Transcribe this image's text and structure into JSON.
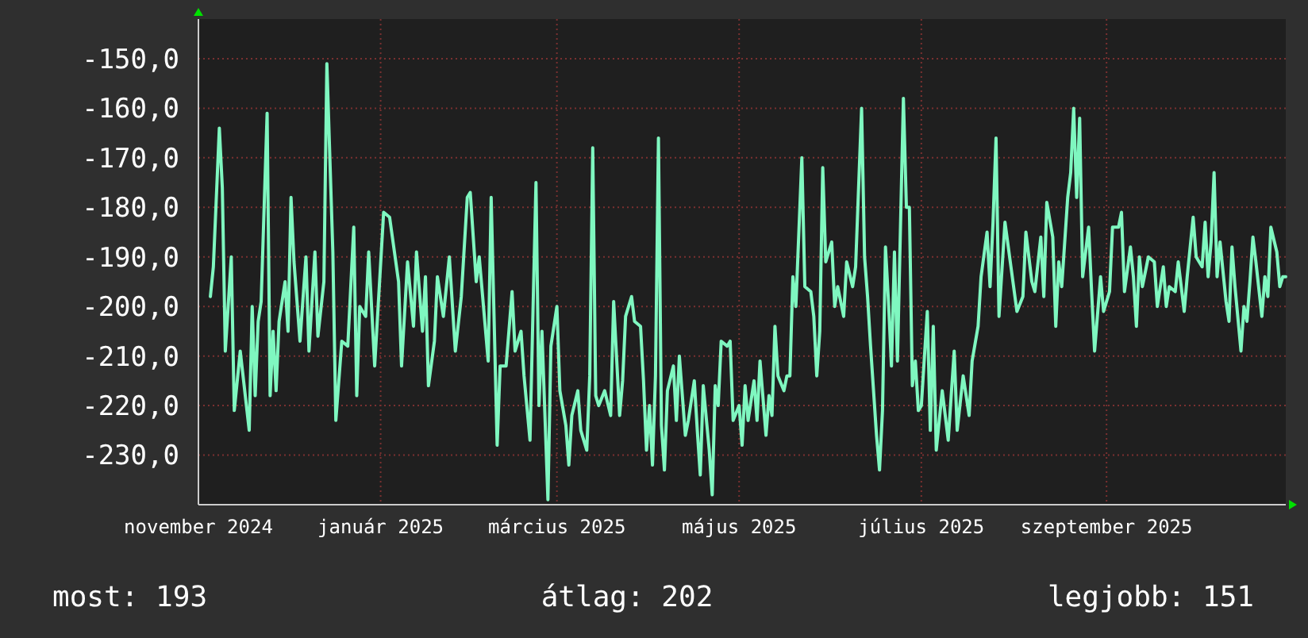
{
  "chart_data": {
    "type": "line",
    "color": "#7ff7c0",
    "grid": true,
    "xlim": [
      "2024-11-01",
      "2025-10-31"
    ],
    "xticks": [
      {
        "value": "2024-11-01",
        "label": "november 2024"
      },
      {
        "value": "2025-01-01",
        "label": "január 2025"
      },
      {
        "value": "2025-03-01",
        "label": "március 2025"
      },
      {
        "value": "2025-05-01",
        "label": "május 2025"
      },
      {
        "value": "2025-07-01",
        "label": "július 2025"
      },
      {
        "value": "2025-09-01",
        "label": "szeptember 2025"
      }
    ],
    "ylim": [
      -240,
      -142
    ],
    "yticks": [
      {
        "value": -150,
        "label": "-150,0"
      },
      {
        "value": -160,
        "label": "-160,0"
      },
      {
        "value": -170,
        "label": "-170,0"
      },
      {
        "value": -180,
        "label": "-180,0"
      },
      {
        "value": -190,
        "label": "-190,0"
      },
      {
        "value": -200,
        "label": "-200,0"
      },
      {
        "value": -210,
        "label": "-210,0"
      },
      {
        "value": -220,
        "label": "-220,0"
      },
      {
        "value": -230,
        "label": "-230,0"
      }
    ],
    "annotations": [
      "most: 193",
      "átlag: 202",
      "legjobb: 151"
    ],
    "x": [
      "2024-11-05",
      "2024-11-06",
      "2024-11-08",
      "2024-11-09",
      "2024-11-10",
      "2024-11-12",
      "2024-11-13",
      "2024-11-15",
      "2024-11-18",
      "2024-11-19",
      "2024-11-20",
      "2024-11-21",
      "2024-11-22",
      "2024-11-24",
      "2024-11-25",
      "2024-11-26",
      "2024-11-27",
      "2024-11-28",
      "2024-11-30",
      "2024-12-01",
      "2024-12-02",
      "2024-12-03",
      "2024-12-05",
      "2024-12-07",
      "2024-12-08",
      "2024-12-10",
      "2024-12-11",
      "2024-12-13",
      "2024-12-14",
      "2024-12-16",
      "2024-12-17",
      "2024-12-19",
      "2024-12-21",
      "2024-12-23",
      "2024-12-24",
      "2024-12-25",
      "2024-12-27",
      "2024-12-28",
      "2024-12-30",
      "2025-01-02",
      "2025-01-04",
      "2025-01-07",
      "2025-01-08",
      "2025-01-10",
      "2025-01-12",
      "2025-01-13",
      "2025-01-15",
      "2025-01-16",
      "2025-01-17",
      "2025-01-19",
      "2025-01-20",
      "2025-01-22",
      "2025-01-24",
      "2025-01-26",
      "2025-01-28",
      "2025-01-30",
      "2025-01-31",
      "2025-02-02",
      "2025-02-03",
      "2025-02-06",
      "2025-02-07",
      "2025-02-09",
      "2025-02-10",
      "2025-02-12",
      "2025-02-14",
      "2025-02-15",
      "2025-02-17",
      "2025-02-18",
      "2025-02-20",
      "2025-02-21",
      "2025-02-22",
      "2025-02-23",
      "2025-02-24",
      "2025-02-26",
      "2025-02-27",
      "2025-03-01",
      "2025-03-02",
      "2025-03-04",
      "2025-03-05",
      "2025-03-06",
      "2025-03-08",
      "2025-03-09",
      "2025-03-11",
      "2025-03-12",
      "2025-03-13",
      "2025-03-14",
      "2025-03-15",
      "2025-03-17",
      "2025-03-19",
      "2025-03-20",
      "2025-03-22",
      "2025-03-23",
      "2025-03-24",
      "2025-03-26",
      "2025-03-27",
      "2025-03-29",
      "2025-03-30",
      "2025-03-31",
      "2025-04-01",
      "2025-04-02",
      "2025-04-03",
      "2025-04-04",
      "2025-04-05",
      "2025-04-06",
      "2025-04-07",
      "2025-04-09",
      "2025-04-10",
      "2025-04-11",
      "2025-04-13",
      "2025-04-14",
      "2025-04-16",
      "2025-04-17",
      "2025-04-18",
      "2025-04-19",
      "2025-04-21",
      "2025-04-22",
      "2025-04-23",
      "2025-04-24",
      "2025-04-25",
      "2025-04-27",
      "2025-04-28",
      "2025-04-29",
      "2025-05-01",
      "2025-05-02",
      "2025-05-03",
      "2025-05-04",
      "2025-05-06",
      "2025-05-07",
      "2025-05-08",
      "2025-05-10",
      "2025-05-11",
      "2025-05-12",
      "2025-05-13",
      "2025-05-14",
      "2025-05-16",
      "2025-05-17",
      "2025-05-18",
      "2025-05-19",
      "2025-05-20",
      "2025-05-22",
      "2025-05-23",
      "2025-05-25",
      "2025-05-26",
      "2025-05-27",
      "2025-05-28",
      "2025-05-29",
      "2025-05-30",
      "2025-06-01",
      "2025-06-02",
      "2025-06-03",
      "2025-06-05",
      "2025-06-06",
      "2025-06-08",
      "2025-06-09",
      "2025-06-11",
      "2025-06-12",
      "2025-06-13",
      "2025-06-14",
      "2025-06-16",
      "2025-06-17",
      "2025-06-18",
      "2025-06-19",
      "2025-06-20",
      "2025-06-21",
      "2025-06-22",
      "2025-06-23",
      "2025-06-25",
      "2025-06-26",
      "2025-06-27",
      "2025-06-28",
      "2025-06-29",
      "2025-06-30",
      "2025-07-01",
      "2025-07-03",
      "2025-07-04",
      "2025-07-05",
      "2025-07-06",
      "2025-07-08",
      "2025-07-10",
      "2025-07-12",
      "2025-07-13",
      "2025-07-15",
      "2025-07-17",
      "2025-07-18",
      "2025-07-20",
      "2025-07-21",
      "2025-07-23",
      "2025-07-24",
      "2025-07-25",
      "2025-07-26",
      "2025-07-27",
      "2025-07-29",
      "2025-07-31",
      "2025-08-02",
      "2025-08-04",
      "2025-08-05",
      "2025-08-07",
      "2025-08-08",
      "2025-08-10",
      "2025-08-11",
      "2025-08-12",
      "2025-08-14",
      "2025-08-15",
      "2025-08-16",
      "2025-08-17",
      "2025-08-19",
      "2025-08-20",
      "2025-08-21",
      "2025-08-22",
      "2025-08-23",
      "2025-08-24",
      "2025-08-26",
      "2025-08-27",
      "2025-08-28",
      "2025-08-30",
      "2025-08-31",
      "2025-09-02",
      "2025-09-03",
      "2025-09-05",
      "2025-09-06",
      "2025-09-07",
      "2025-09-09",
      "2025-09-10",
      "2025-09-11",
      "2025-09-12",
      "2025-09-13",
      "2025-09-15",
      "2025-09-17",
      "2025-09-18",
      "2025-09-20",
      "2025-09-21",
      "2025-09-22",
      "2025-09-24",
      "2025-09-25",
      "2025-09-27",
      "2025-09-28",
      "2025-09-30",
      "2025-10-01",
      "2025-10-03",
      "2025-10-04",
      "2025-10-05",
      "2025-10-06",
      "2025-10-07",
      "2025-10-08",
      "2025-10-09",
      "2025-10-11",
      "2025-10-12",
      "2025-10-13",
      "2025-10-14",
      "2025-10-16",
      "2025-10-17",
      "2025-10-18",
      "2025-10-19",
      "2025-10-20",
      "2025-10-21",
      "2025-10-23",
      "2025-10-24",
      "2025-10-25",
      "2025-10-26",
      "2025-10-28",
      "2025-10-29",
      "2025-10-30",
      "2025-10-31"
    ],
    "values": [
      -198,
      -192,
      -164,
      -176,
      -209,
      -190,
      -221,
      -209,
      -225,
      -200,
      -218,
      -203,
      -199,
      -161,
      -218,
      -205,
      -217,
      -203,
      -195,
      -205,
      -178,
      -191,
      -207,
      -190,
      -209,
      -189,
      -206,
      -195,
      -151,
      -189,
      -223,
      -207,
      -208,
      -184,
      -218,
      -200,
      -202,
      -189,
      -212,
      -181,
      -182,
      -195,
      -212,
      -191,
      -204,
      -189,
      -205,
      -194,
      -216,
      -207,
      -194,
      -202,
      -190,
      -209,
      -198,
      -178,
      -177,
      -195,
      -190,
      -211,
      -178,
      -228,
      -212,
      -212,
      -197,
      -209,
      -205,
      -214,
      -227,
      -201,
      -175,
      -220,
      -205,
      -239,
      -208,
      -200,
      -217,
      -224,
      -232,
      -222,
      -217,
      -225,
      -229,
      -214,
      -168,
      -218,
      -220,
      -217,
      -222,
      -199,
      -222,
      -215,
      -202,
      -198,
      -203,
      -204,
      -215,
      -229,
      -220,
      -232,
      -214,
      -166,
      -224,
      -233,
      -217,
      -212,
      -223,
      -210,
      -226,
      -223,
      -215,
      -225,
      -234,
      -216,
      -229,
      -238,
      -216,
      -220,
      -207,
      -208,
      -207,
      -223,
      -220,
      -228,
      -216,
      -223,
      -215,
      -223,
      -211,
      -226,
      -218,
      -222,
      -204,
      -214,
      -217,
      -214,
      -214,
      -194,
      -200,
      -170,
      -196,
      -197,
      -202,
      -214,
      -205,
      -172,
      -191,
      -187,
      -200,
      -196,
      -202,
      -191,
      -196,
      -192,
      -160,
      -190,
      -198,
      -208,
      -226,
      -233,
      -221,
      -188,
      -199,
      -212,
      -189,
      -211,
      -158,
      -180,
      -180,
      -216,
      -211,
      -221,
      -220,
      -201,
      -225,
      -204,
      -229,
      -217,
      -227,
      -209,
      -225,
      -214,
      -222,
      -211,
      -204,
      -194,
      -185,
      -196,
      -183,
      -166,
      -202,
      -183,
      -192,
      -201,
      -198,
      -185,
      -195,
      -197,
      -186,
      -198,
      -179,
      -186,
      -204,
      -191,
      -196,
      -178,
      -173,
      -160,
      -178,
      -162,
      -194,
      -184,
      -197,
      -209,
      -194,
      -201,
      -197,
      -184,
      -184,
      -181,
      -197,
      -188,
      -194,
      -204,
      -190,
      -196,
      -190,
      -191,
      -200,
      -192,
      -200,
      -196,
      -197,
      -191,
      -201,
      -194,
      -182,
      -190,
      -192,
      -183,
      -194,
      -187,
      -173,
      -194,
      -187,
      -199,
      -203,
      -188,
      -196,
      -209,
      -200,
      -203,
      -195,
      -186,
      -191,
      -202,
      -194,
      -198,
      -184,
      -189,
      -196,
      -194,
      -194
    ]
  }
}
